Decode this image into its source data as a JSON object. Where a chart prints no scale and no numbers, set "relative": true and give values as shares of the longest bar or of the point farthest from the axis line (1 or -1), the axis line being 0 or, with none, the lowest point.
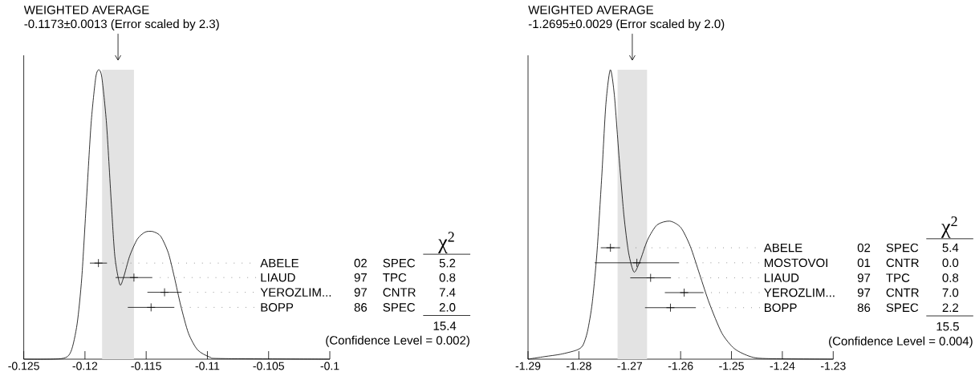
{
  "chart_data": [
    {
      "type": "line",
      "relative": true,
      "title": "WEIGHTED AVERAGE",
      "subtitle": "-0.1173±0.0013 (Error scaled by 2.3)",
      "xlim": [
        -0.125,
        -0.1
      ],
      "xticks": [
        -0.125,
        -0.12,
        -0.115,
        -0.11,
        -0.105,
        -0.1
      ],
      "bands": [
        {
          "axis": "x",
          "from": -0.1186,
          "to": -0.116,
          "color": "#e3e3e3"
        }
      ],
      "series": [
        {
          "color": "#000000",
          "x": [
            -0.125,
            -0.1219,
            -0.12114,
            -0.12064,
            -0.12026,
            -0.11988,
            -0.1195,
            -0.11912,
            -0.11887,
            -0.11862,
            -0.11824,
            -0.11786,
            -0.11756,
            -0.11715,
            -0.11685,
            -0.11635,
            -0.11572,
            -0.11509,
            -0.11446,
            -0.11382,
            -0.11319,
            -0.11269,
            -0.11218,
            -0.11155,
            -0.1108,
            -0.10979,
            -0.10878,
            -0.1
          ],
          "values": [
            0,
            0.002,
            0.027,
            0.122,
            0.282,
            0.548,
            0.814,
            0.973,
            1,
            0.973,
            0.814,
            0.548,
            0.356,
            0.258,
            0.282,
            0.356,
            0.415,
            0.439,
            0.441,
            0.425,
            0.367,
            0.282,
            0.186,
            0.09,
            0.032,
            0.007,
            0.002,
            0
          ]
        },
        {
          "type": "scatter",
          "marker": "cross",
          "color": "#000000",
          "x": [
            -0.1189,
            -0.116,
            -0.1135,
            -0.1146
          ],
          "values": [
            0.332,
            0.282,
            0.231,
            0.179
          ],
          "xerrors": [
            0.0007,
            0.0015,
            0.0014,
            0.0019
          ]
        }
      ],
      "annotations": [
        "ABELE",
        "02",
        "SPEC",
        "5.2",
        "LIAUD",
        "97",
        "TPC",
        "0.8",
        "YEROZLIM...",
        "97",
        "CNTR",
        "7.4",
        "BOPP",
        "86",
        "SPEC",
        "2.0",
        "χ$^{2}$",
        "15.4",
        "(Confidence Level = 0.002)"
      ]
    },
    {
      "type": "line",
      "relative": true,
      "title": "WEIGHTED AVERAGE",
      "subtitle": "-1.2695±0.0029 (Error scaled by 2.0)",
      "xlim": [
        -1.29,
        -1.23
      ],
      "xticks": [
        -1.29,
        -1.28,
        -1.27,
        -1.26,
        -1.25,
        -1.24,
        -1.23
      ],
      "bands": [
        {
          "axis": "x",
          "from": -1.2724,
          "to": -1.2666,
          "color": "#e3e3e3"
        }
      ],
      "series": [
        {
          "color": "#000000",
          "x": [
            -1.29,
            -1.2867,
            -1.2836,
            -1.28049,
            -1.27924,
            -1.27831,
            -1.27738,
            -1.27645,
            -1.27551,
            -1.2747,
            -1.27383,
            -1.27303,
            -1.27209,
            -1.27116,
            -1.27023,
            -1.26917,
            -1.26805,
            -1.2665,
            -1.26463,
            -1.26214,
            -1.25997,
            -1.2581,
            -1.25624,
            -1.25437,
            -1.25189,
            -1.2494,
            -1.24629,
            -1.24318,
            -1.23
          ],
          "values": [
            0,
            0.009,
            0.017,
            0.031,
            0.047,
            0.096,
            0.194,
            0.368,
            0.63,
            0.88,
            1,
            0.913,
            0.695,
            0.499,
            0.368,
            0.301,
            0.336,
            0.412,
            0.464,
            0.477,
            0.455,
            0.39,
            0.292,
            0.194,
            0.09,
            0.036,
            0.009,
            0.002,
            0
          ]
        },
        {
          "type": "scatter",
          "marker": "cross",
          "color": "#000000",
          "x": [
            -1.2738,
            -1.2686,
            -1.2659,
            -1.2593,
            -1.262
          ],
          "values": [
            0.385,
            0.333,
            0.281,
            0.23,
            0.178
          ],
          "xerrors": [
            0.0019,
            0.0083,
            0.004,
            0.0038,
            0.005
          ]
        }
      ],
      "annotations": [
        "ABELE",
        "02",
        "SPEC",
        "5.4",
        "MOSTOVOI",
        "01",
        "CNTR",
        "0.0",
        "LIAUD",
        "97",
        "TPC",
        "0.8",
        "YEROZLIM...",
        "97",
        "CNTR",
        "7.0",
        "BOPP",
        "86",
        "SPEC",
        "2.2",
        "χ$^{2}$",
        "15.5",
        "(Confidence Level = 0.004)"
      ]
    }
  ]
}
